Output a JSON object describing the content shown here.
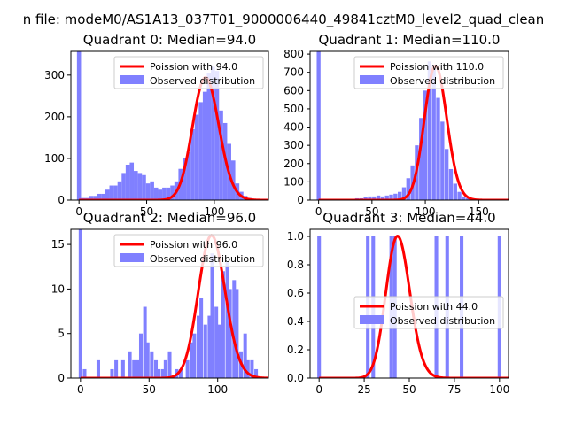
{
  "figure": {
    "suptitle": "n file: modeM0/AS1A13_037T01_9000006440_49841cztM0_level2_quad_clean"
  },
  "colors": {
    "hist": "#8080ff",
    "poisson": "#ff0000",
    "axis": "#000000"
  },
  "chart_data": [
    {
      "type": "bar",
      "panel": 0,
      "title": "Quadrant 0: Median=94.0",
      "xlim": [
        -6,
        140
      ],
      "ylim": [
        0,
        357
      ],
      "xticks": [
        0,
        50,
        100
      ],
      "yticks": [
        0,
        100,
        200,
        300
      ],
      "legend": {
        "position": "top-right",
        "line_label": "Poission with 94.0",
        "bar_label": "Observed distribution"
      },
      "hist": {
        "bin_width": 3.0,
        "x": [
          0,
          3,
          6,
          9,
          12,
          15,
          18,
          21,
          24,
          27,
          30,
          33,
          36,
          39,
          42,
          45,
          48,
          51,
          54,
          57,
          60,
          63,
          66,
          69,
          72,
          75,
          78,
          81,
          84,
          87,
          90,
          93,
          96,
          99,
          102,
          105,
          108,
          111,
          114,
          117,
          120,
          123,
          126,
          129
        ],
        "y": [
          357,
          5,
          5,
          10,
          10,
          15,
          15,
          25,
          35,
          35,
          45,
          65,
          85,
          90,
          70,
          65,
          60,
          40,
          45,
          30,
          25,
          30,
          30,
          35,
          45,
          75,
          100,
          115,
          170,
          205,
          235,
          260,
          305,
          320,
          310,
          215,
          185,
          135,
          95,
          40,
          20,
          10,
          5,
          2
        ]
      },
      "poisson": {
        "mean": 94.0,
        "peak": 294
      }
    },
    {
      "type": "bar",
      "panel": 1,
      "title": "Quadrant 1: Median=110.0",
      "xlim": [
        -8,
        178
      ],
      "ylim": [
        0,
        815
      ],
      "xticks": [
        0,
        50,
        100,
        150
      ],
      "yticks": [
        0,
        100,
        200,
        300,
        400,
        500,
        600,
        700,
        800
      ],
      "legend": {
        "position": "top-right",
        "line_label": "Poission with 110.0",
        "bar_label": "Observed distribution"
      },
      "hist": {
        "bin_width": 3.6,
        "x": [
          0,
          4,
          8,
          12,
          16,
          20,
          24,
          28,
          32,
          36,
          40,
          44,
          48,
          52,
          56,
          60,
          64,
          68,
          72,
          76,
          80,
          84,
          88,
          92,
          96,
          100,
          104,
          108,
          112,
          116,
          120,
          124,
          128,
          132,
          136,
          140,
          144
        ],
        "y": [
          815,
          5,
          5,
          5,
          5,
          5,
          5,
          5,
          5,
          10,
          10,
          15,
          20,
          20,
          25,
          20,
          25,
          30,
          35,
          45,
          70,
          120,
          190,
          300,
          450,
          600,
          760,
          740,
          560,
          430,
          280,
          170,
          90,
          45,
          20,
          10,
          5
        ]
      },
      "poisson": {
        "mean": 110.0,
        "peak": 735
      }
    },
    {
      "type": "bar",
      "panel": 2,
      "title": "Quadrant 2: Median=96.0",
      "xlim": [
        -7,
        137
      ],
      "ylim": [
        0,
        16.7
      ],
      "xticks": [
        0,
        50,
        100
      ],
      "yticks": [
        0,
        5,
        10,
        15
      ],
      "legend": {
        "position": "top-right",
        "line_label": "Poission with 96.0",
        "bar_label": "Observed distribution"
      },
      "hist": {
        "bin_width": 2.6,
        "x": [
          0,
          3,
          13,
          23,
          26,
          31,
          36,
          39,
          42,
          44,
          47,
          49,
          52,
          55,
          57,
          60,
          62,
          65,
          70,
          73,
          78,
          81,
          83,
          86,
          88,
          91,
          94,
          96,
          99,
          101,
          104,
          107,
          109,
          112,
          114,
          117,
          120,
          122,
          125,
          128
        ],
        "y": [
          16.7,
          1,
          2,
          1,
          2,
          2,
          3,
          2,
          2,
          5,
          8,
          4,
          3,
          2,
          1,
          1,
          2,
          3,
          1,
          1,
          2,
          4,
          5,
          7,
          9,
          6,
          7,
          14,
          8,
          6,
          12,
          13,
          10,
          11,
          10,
          3,
          5,
          2,
          2,
          1
        ]
      },
      "poisson": {
        "mean": 96.0,
        "peak": 16.0
      }
    },
    {
      "type": "bar",
      "panel": 3,
      "title": "Quadrant 3: Median=44.0",
      "xlim": [
        -5,
        105
      ],
      "ylim": [
        0,
        1.05
      ],
      "xticks": [
        0,
        25,
        50,
        75,
        100
      ],
      "yticks": [
        0.0,
        0.2,
        0.4,
        0.6,
        0.8,
        1.0
      ],
      "legend": {
        "position": "center-right",
        "line_label": "Poission with 44.0",
        "bar_label": "Observed distribution"
      },
      "hist": {
        "bin_width": 2.0,
        "x": [
          0,
          27,
          30,
          40,
          42,
          65,
          71,
          79,
          100
        ],
        "y": [
          1,
          1,
          1,
          1,
          1,
          1,
          1,
          1,
          1
        ]
      },
      "poisson": {
        "mean": 44.0,
        "peak": 1.0
      }
    }
  ]
}
